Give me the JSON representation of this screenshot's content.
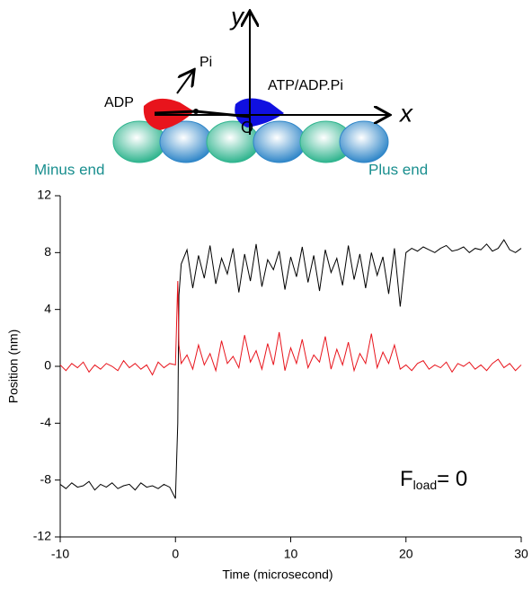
{
  "diagram": {
    "y_axis": "y",
    "x_axis": "x",
    "origin": "O",
    "pi": "Pi",
    "adp": "ADP",
    "atp": "ATP/ADP.Pi",
    "minus_end": "Minus end",
    "plus_end": "Plus end"
  },
  "chart_data": {
    "type": "line",
    "xlabel": "Time (microsecond)",
    "ylabel": "Position (nm)",
    "annotation": {
      "main": "F",
      "sub": "load",
      "rest": "= 0"
    },
    "xlim": [
      -10,
      30
    ],
    "xticks": [
      -10,
      0,
      10,
      20,
      30
    ],
    "ylim": [
      -12,
      12
    ],
    "yticks": [
      -12,
      -8,
      -4,
      0,
      4,
      8,
      12
    ],
    "x": [
      -10,
      -9.5,
      -9,
      -8.5,
      -8,
      -7.5,
      -7,
      -6.5,
      -6,
      -5.5,
      -5,
      -4.5,
      -4,
      -3.5,
      -3,
      -2.5,
      -2,
      -1.5,
      -1,
      -0.5,
      0,
      0.2,
      0.3,
      0.5,
      1,
      1.5,
      2,
      2.5,
      3,
      3.5,
      4,
      4.5,
      5,
      5.5,
      6,
      6.5,
      7,
      7.5,
      8,
      8.5,
      9,
      9.5,
      10,
      10.5,
      11,
      11.5,
      12,
      12.5,
      13,
      13.5,
      14,
      14.5,
      15,
      15.5,
      16,
      16.5,
      17,
      17.5,
      18,
      18.5,
      19,
      19.5,
      20,
      20.5,
      21,
      21.5,
      22,
      22.5,
      23,
      23.5,
      24,
      24.5,
      25,
      25.5,
      26,
      26.5,
      27,
      27.5,
      28,
      28.5,
      29,
      29.5,
      30
    ],
    "series": [
      {
        "color": "#000000",
        "values": [
          -8.3,
          -8.6,
          -8.2,
          -8.5,
          -8.4,
          -8.1,
          -8.7,
          -8.3,
          -8.5,
          -8.2,
          -8.6,
          -8.4,
          -8.3,
          -8.7,
          -8.2,
          -8.5,
          -8.4,
          -8.6,
          -8.3,
          -8.5,
          -9.3,
          -4,
          5,
          7.2,
          8.2,
          5.5,
          7.8,
          6.2,
          8.5,
          5.8,
          7.6,
          6.5,
          8.3,
          5.2,
          7.9,
          6.0,
          8.6,
          5.6,
          7.5,
          6.8,
          8.1,
          5.4,
          7.7,
          6.3,
          8.4,
          5.9,
          7.8,
          5.3,
          8.2,
          6.6,
          7.6,
          5.7,
          8.5,
          6.1,
          7.9,
          5.5,
          8.0,
          6.4,
          7.7,
          5.1,
          8.3,
          4.2,
          8.0,
          8.3,
          8.1,
          8.4,
          8.2,
          8.0,
          8.3,
          8.5,
          8.1,
          8.2,
          8.4,
          8.0,
          8.3,
          8.2,
          8.6,
          8.1,
          8.3,
          8.9,
          8.2,
          8.0,
          8.3
        ]
      },
      {
        "color": "#e8141c",
        "values": [
          0.1,
          -0.3,
          0.2,
          -0.1,
          0.3,
          -0.4,
          0.1,
          -0.2,
          0.2,
          0,
          -0.3,
          0.4,
          -0.1,
          0.2,
          -0.2,
          0.1,
          -0.6,
          0.3,
          -0.1,
          0.2,
          0.1,
          6.0,
          1.5,
          0.2,
          0.8,
          -0.2,
          1.5,
          0.1,
          0.9,
          -0.3,
          1.8,
          0.2,
          0.7,
          -0.1,
          2.2,
          0.3,
          1.1,
          -0.2,
          1.6,
          0.1,
          2.4,
          -0.3,
          1.3,
          0.2,
          1.9,
          -0.1,
          0.8,
          0.3,
          2.1,
          -0.2,
          1.2,
          0.1,
          1.7,
          -0.3,
          0.9,
          0.2,
          2.3,
          -0.1,
          1.0,
          0.2,
          1.5,
          -0.2,
          0.1,
          -0.3,
          0.2,
          0.4,
          -0.2,
          0.1,
          -0.1,
          0.3,
          -0.4,
          0.2,
          0,
          0.3,
          -0.2,
          0.1,
          -0.3,
          0.2,
          0.5,
          -0.1,
          0.2,
          -0.3,
          0.1
        ]
      }
    ]
  }
}
